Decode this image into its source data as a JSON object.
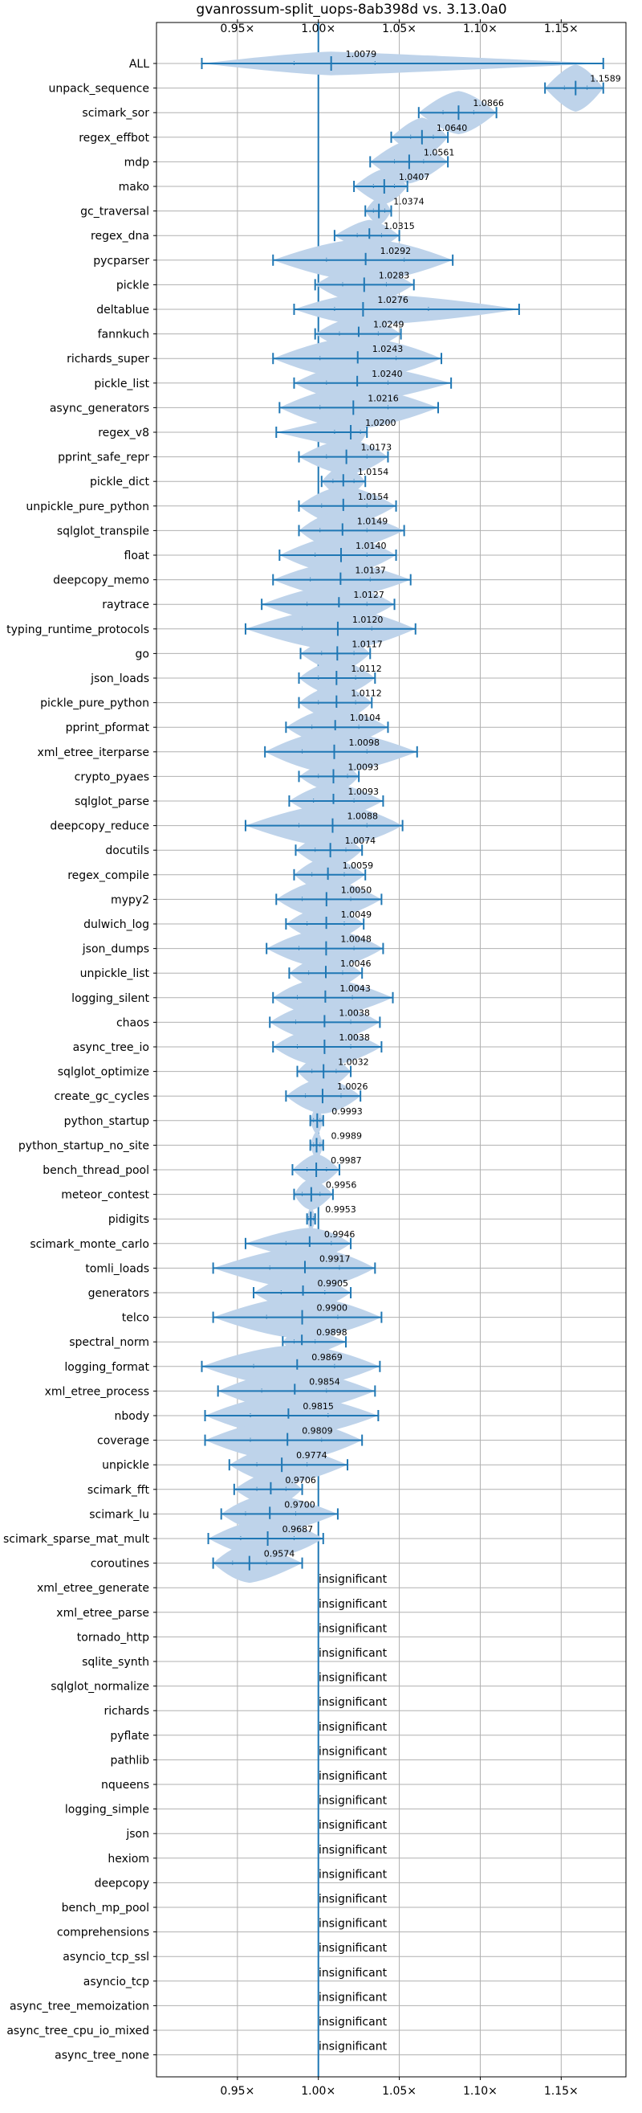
{
  "chart_data": {
    "type": "violin",
    "title": "gvanrossum-split_uops-8ab398d vs. 3.13.0a0",
    "xlim": [
      0.9,
      1.19
    ],
    "xticks": [
      {
        "value": 0.95,
        "label": "0.95×"
      },
      {
        "value": 1.0,
        "label": "1.00×"
      },
      {
        "value": 1.05,
        "label": "1.05×"
      },
      {
        "value": 1.1,
        "label": "1.10×"
      },
      {
        "value": 1.15,
        "label": "1.15×"
      }
    ],
    "reference_line": 1.0,
    "grid": true,
    "insignificant_text": "insignificant",
    "benchmarks": [
      {
        "name": "ALL",
        "mean": 1.0079,
        "min": 0.928,
        "max": 1.176,
        "q1": 0.985,
        "q3": 1.035,
        "halfwidth": 0.006
      },
      {
        "name": "unpack_sequence",
        "mean": 1.1589,
        "min": 1.14,
        "max": 1.176,
        "q1": 1.152,
        "q3": 1.166,
        "halfwidth": 0.012
      },
      {
        "name": "scimark_sor",
        "mean": 1.0866,
        "min": 1.062,
        "max": 1.11,
        "q1": 1.077,
        "q3": 1.096,
        "halfwidth": 0.011
      },
      {
        "name": "regex_effbot",
        "mean": 1.064,
        "min": 1.045,
        "max": 1.08,
        "q1": 1.057,
        "q3": 1.071,
        "halfwidth": 0.01
      },
      {
        "name": "mdp",
        "mean": 1.0561,
        "min": 1.032,
        "max": 1.08,
        "q1": 1.047,
        "q3": 1.065,
        "halfwidth": 0.011
      },
      {
        "name": "mako",
        "mean": 1.0407,
        "min": 1.022,
        "max": 1.055,
        "q1": 1.034,
        "q3": 1.047,
        "halfwidth": 0.009
      },
      {
        "name": "gc_traversal",
        "mean": 1.0374,
        "min": 1.029,
        "max": 1.045,
        "q1": 1.034,
        "q3": 1.041,
        "halfwidth": 0.007
      },
      {
        "name": "regex_dna",
        "mean": 1.0315,
        "min": 1.01,
        "max": 1.05,
        "q1": 1.024,
        "q3": 1.039,
        "halfwidth": 0.008
      },
      {
        "name": "pycparser",
        "mean": 1.0292,
        "min": 0.972,
        "max": 1.083,
        "q1": 1.005,
        "q3": 1.053,
        "halfwidth": 0.011
      },
      {
        "name": "pickle",
        "mean": 1.0283,
        "min": 0.998,
        "max": 1.059,
        "q1": 1.015,
        "q3": 1.042,
        "halfwidth": 0.01
      },
      {
        "name": "deltablue",
        "mean": 1.0276,
        "min": 0.985,
        "max": 1.124,
        "q1": 1.01,
        "q3": 1.068,
        "halfwidth": 0.008
      },
      {
        "name": "fannkuch",
        "mean": 1.0249,
        "min": 0.998,
        "max": 1.051,
        "q1": 1.013,
        "q3": 1.037,
        "halfwidth": 0.009
      },
      {
        "name": "richards_super",
        "mean": 1.0243,
        "min": 0.972,
        "max": 1.076,
        "q1": 1.001,
        "q3": 1.048,
        "halfwidth": 0.011
      },
      {
        "name": "pickle_list",
        "mean": 1.024,
        "min": 0.985,
        "max": 1.082,
        "q1": 1.005,
        "q3": 1.043,
        "halfwidth": 0.01
      },
      {
        "name": "async_generators",
        "mean": 1.0216,
        "min": 0.976,
        "max": 1.074,
        "q1": 1.001,
        "q3": 1.043,
        "halfwidth": 0.011
      },
      {
        "name": "regex_v8",
        "mean": 1.02,
        "min": 0.974,
        "max": 1.03,
        "q1": 1.01,
        "q3": 1.026,
        "halfwidth": 0.008
      },
      {
        "name": "pprint_safe_repr",
        "mean": 1.0173,
        "min": 0.988,
        "max": 1.043,
        "q1": 1.005,
        "q3": 1.03,
        "halfwidth": 0.009
      },
      {
        "name": "pickle_dict",
        "mean": 1.0154,
        "min": 1.002,
        "max": 1.029,
        "q1": 1.009,
        "q3": 1.022,
        "halfwidth": 0.008
      },
      {
        "name": "unpickle_pure_python",
        "mean": 1.0154,
        "min": 0.988,
        "max": 1.048,
        "q1": 1.002,
        "q3": 1.03,
        "halfwidth": 0.01
      },
      {
        "name": "sqlglot_transpile",
        "mean": 1.0149,
        "min": 0.988,
        "max": 1.053,
        "q1": 1.001,
        "q3": 1.03,
        "halfwidth": 0.01
      },
      {
        "name": "float",
        "mean": 1.014,
        "min": 0.976,
        "max": 1.048,
        "q1": 0.998,
        "q3": 1.03,
        "halfwidth": 0.01
      },
      {
        "name": "deepcopy_memo",
        "mean": 1.0137,
        "min": 0.972,
        "max": 1.057,
        "q1": 0.995,
        "q3": 1.032,
        "halfwidth": 0.009
      },
      {
        "name": "raytrace",
        "mean": 1.0127,
        "min": 0.965,
        "max": 1.047,
        "q1": 0.993,
        "q3": 1.03,
        "halfwidth": 0.01
      },
      {
        "name": "typing_runtime_protocols",
        "mean": 1.012,
        "min": 0.955,
        "max": 1.06,
        "q1": 0.99,
        "q3": 1.033,
        "halfwidth": 0.011
      },
      {
        "name": "go",
        "mean": 1.0117,
        "min": 0.989,
        "max": 1.032,
        "q1": 1.002,
        "q3": 1.022,
        "halfwidth": 0.009
      },
      {
        "name": "json_loads",
        "mean": 1.0112,
        "min": 0.988,
        "max": 1.035,
        "q1": 1.0,
        "q3": 1.023,
        "halfwidth": 0.009
      },
      {
        "name": "pickle_pure_python",
        "mean": 1.0112,
        "min": 0.988,
        "max": 1.033,
        "q1": 1.0,
        "q3": 1.023,
        "halfwidth": 0.009
      },
      {
        "name": "pprint_pformat",
        "mean": 1.0104,
        "min": 0.98,
        "max": 1.043,
        "q1": 0.996,
        "q3": 1.025,
        "halfwidth": 0.01
      },
      {
        "name": "xml_etree_iterparse",
        "mean": 1.0098,
        "min": 0.967,
        "max": 1.061,
        "q1": 0.99,
        "q3": 1.03,
        "halfwidth": 0.011
      },
      {
        "name": "crypto_pyaes",
        "mean": 1.0093,
        "min": 0.988,
        "max": 1.025,
        "q1": 1.0,
        "q3": 1.018,
        "halfwidth": 0.008
      },
      {
        "name": "sqlglot_parse",
        "mean": 1.0093,
        "min": 0.982,
        "max": 1.04,
        "q1": 0.997,
        "q3": 1.022,
        "halfwidth": 0.009
      },
      {
        "name": "deepcopy_reduce",
        "mean": 1.0088,
        "min": 0.955,
        "max": 1.052,
        "q1": 0.988,
        "q3": 1.03,
        "halfwidth": 0.011
      },
      {
        "name": "docutils",
        "mean": 1.0074,
        "min": 0.986,
        "max": 1.027,
        "q1": 0.998,
        "q3": 1.017,
        "halfwidth": 0.009
      },
      {
        "name": "regex_compile",
        "mean": 1.0059,
        "min": 0.985,
        "max": 1.029,
        "q1": 0.996,
        "q3": 1.016,
        "halfwidth": 0.009
      },
      {
        "name": "mypy2",
        "mean": 1.005,
        "min": 0.974,
        "max": 1.039,
        "q1": 0.99,
        "q3": 1.02,
        "halfwidth": 0.01
      },
      {
        "name": "dulwich_log",
        "mean": 1.0049,
        "min": 0.98,
        "max": 1.028,
        "q1": 0.993,
        "q3": 1.016,
        "halfwidth": 0.009
      },
      {
        "name": "json_dumps",
        "mean": 1.0048,
        "min": 0.968,
        "max": 1.04,
        "q1": 0.988,
        "q3": 1.022,
        "halfwidth": 0.01
      },
      {
        "name": "unpickle_list",
        "mean": 1.0046,
        "min": 0.982,
        "max": 1.027,
        "q1": 0.994,
        "q3": 1.015,
        "halfwidth": 0.009
      },
      {
        "name": "logging_silent",
        "mean": 1.0043,
        "min": 0.972,
        "max": 1.046,
        "q1": 0.987,
        "q3": 1.021,
        "halfwidth": 0.01
      },
      {
        "name": "chaos",
        "mean": 1.0038,
        "min": 0.97,
        "max": 1.038,
        "q1": 0.986,
        "q3": 1.02,
        "halfwidth": 0.01
      },
      {
        "name": "async_tree_io",
        "mean": 1.0038,
        "min": 0.972,
        "max": 1.039,
        "q1": 0.987,
        "q3": 1.02,
        "halfwidth": 0.01
      },
      {
        "name": "sqlglot_optimize",
        "mean": 1.0032,
        "min": 0.987,
        "max": 1.02,
        "q1": 0.996,
        "q3": 1.011,
        "halfwidth": 0.009
      },
      {
        "name": "create_gc_cycles",
        "mean": 1.0026,
        "min": 0.98,
        "max": 1.026,
        "q1": 0.992,
        "q3": 1.014,
        "halfwidth": 0.009
      },
      {
        "name": "python_startup",
        "mean": 0.9993,
        "min": 0.995,
        "max": 1.003,
        "q1": 0.997,
        "q3": 1.001,
        "halfwidth": 0.007
      },
      {
        "name": "python_startup_no_site",
        "mean": 0.9989,
        "min": 0.995,
        "max": 1.003,
        "q1": 0.997,
        "q3": 1.001,
        "halfwidth": 0.007
      },
      {
        "name": "bench_thread_pool",
        "mean": 0.9987,
        "min": 0.984,
        "max": 1.013,
        "q1": 0.993,
        "q3": 1.005,
        "halfwidth": 0.008
      },
      {
        "name": "meteor_contest",
        "mean": 0.9956,
        "min": 0.985,
        "max": 1.009,
        "q1": 0.99,
        "q3": 1.001,
        "halfwidth": 0.008
      },
      {
        "name": "pidigits",
        "mean": 0.9953,
        "min": 0.993,
        "max": 0.998,
        "q1": 0.994,
        "q3": 0.997,
        "halfwidth": 0.006
      },
      {
        "name": "scimark_monte_carlo",
        "mean": 0.9946,
        "min": 0.955,
        "max": 1.02,
        "q1": 0.98,
        "q3": 1.008,
        "halfwidth": 0.008
      },
      {
        "name": "tomli_loads",
        "mean": 0.9917,
        "min": 0.935,
        "max": 1.035,
        "q1": 0.97,
        "q3": 1.013,
        "halfwidth": 0.011
      },
      {
        "name": "generators",
        "mean": 0.9905,
        "min": 0.96,
        "max": 1.02,
        "q1": 0.977,
        "q3": 1.004,
        "halfwidth": 0.01
      },
      {
        "name": "telco",
        "mean": 0.99,
        "min": 0.935,
        "max": 1.039,
        "q1": 0.968,
        "q3": 1.012,
        "halfwidth": 0.011
      },
      {
        "name": "spectral_norm",
        "mean": 0.9898,
        "min": 0.978,
        "max": 1.017,
        "q1": 0.985,
        "q3": 0.998,
        "halfwidth": 0.008
      },
      {
        "name": "logging_format",
        "mean": 0.9869,
        "min": 0.928,
        "max": 1.038,
        "q1": 0.96,
        "q3": 1.01,
        "halfwidth": 0.011
      },
      {
        "name": "xml_etree_process",
        "mean": 0.9854,
        "min": 0.938,
        "max": 1.035,
        "q1": 0.965,
        "q3": 1.005,
        "halfwidth": 0.011
      },
      {
        "name": "nbody",
        "mean": 0.9815,
        "min": 0.93,
        "max": 1.037,
        "q1": 0.958,
        "q3": 1.006,
        "halfwidth": 0.011
      },
      {
        "name": "coverage",
        "mean": 0.9809,
        "min": 0.93,
        "max": 1.027,
        "q1": 0.958,
        "q3": 1.002,
        "halfwidth": 0.011
      },
      {
        "name": "unpickle",
        "mean": 0.9774,
        "min": 0.945,
        "max": 1.018,
        "q1": 0.962,
        "q3": 0.993,
        "halfwidth": 0.01
      },
      {
        "name": "scimark_fft",
        "mean": 0.9706,
        "min": 0.948,
        "max": 0.99,
        "q1": 0.962,
        "q3": 0.98,
        "halfwidth": 0.009
      },
      {
        "name": "scimark_lu",
        "mean": 0.97,
        "min": 0.94,
        "max": 1.012,
        "q1": 0.955,
        "q3": 0.986,
        "halfwidth": 0.01
      },
      {
        "name": "scimark_sparse_mat_mult",
        "mean": 0.9687,
        "min": 0.932,
        "max": 1.003,
        "q1": 0.952,
        "q3": 0.985,
        "halfwidth": 0.01
      },
      {
        "name": "coroutines",
        "mean": 0.9574,
        "min": 0.935,
        "max": 0.99,
        "q1": 0.947,
        "q3": 0.968,
        "halfwidth": 0.01
      },
      {
        "name": "xml_etree_generate",
        "insignificant": true
      },
      {
        "name": "xml_etree_parse",
        "insignificant": true
      },
      {
        "name": "tornado_http",
        "insignificant": true
      },
      {
        "name": "sqlite_synth",
        "insignificant": true
      },
      {
        "name": "sqlglot_normalize",
        "insignificant": true
      },
      {
        "name": "richards",
        "insignificant": true
      },
      {
        "name": "pyflate",
        "insignificant": true
      },
      {
        "name": "pathlib",
        "insignificant": true
      },
      {
        "name": "nqueens",
        "insignificant": true
      },
      {
        "name": "logging_simple",
        "insignificant": true
      },
      {
        "name": "json",
        "insignificant": true
      },
      {
        "name": "hexiom",
        "insignificant": true
      },
      {
        "name": "deepcopy",
        "insignificant": true
      },
      {
        "name": "bench_mp_pool",
        "insignificant": true
      },
      {
        "name": "comprehensions",
        "insignificant": true
      },
      {
        "name": "asyncio_tcp_ssl",
        "insignificant": true
      },
      {
        "name": "asyncio_tcp",
        "insignificant": true
      },
      {
        "name": "async_tree_memoization",
        "insignificant": true
      },
      {
        "name": "async_tree_cpu_io_mixed",
        "insignificant": true
      },
      {
        "name": "async_tree_none",
        "insignificant": true
      }
    ],
    "colors": {
      "violin_fill": "#bed3ea",
      "whisker": "#1f77b4",
      "reference_line": "#1f77b4",
      "grid": "#b0b0b0",
      "axes": "#000000"
    }
  }
}
